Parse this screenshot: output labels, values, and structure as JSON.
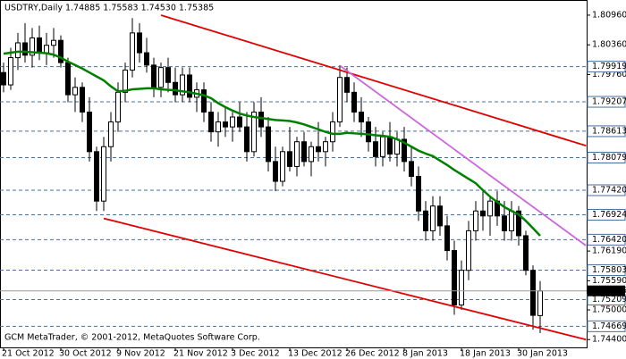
{
  "chart_data": {
    "type": "candlestick",
    "title": "USDTRY,Daily  1.74885 1.75583 1.74530 1.75385",
    "footer": "GCM MetaTrader, © 2001-2012, MetaQuotes Software Corp.",
    "categories": [
      "21 Oct 2012",
      null,
      null,
      null,
      null,
      null,
      null,
      null,
      "30 Oct 2012",
      null,
      null,
      null,
      null,
      null,
      null,
      null,
      "9 Nov 2012",
      null,
      null,
      null,
      null,
      null,
      null,
      null,
      "21 Nov 2012",
      null,
      null,
      null,
      null,
      null,
      null,
      null,
      "3 Dec 2012",
      null,
      null,
      null,
      null,
      null,
      null,
      null,
      "13 Dec 2012",
      null,
      null,
      null,
      null,
      null,
      null,
      null,
      "26 Dec 2012",
      null,
      null,
      null,
      null,
      null,
      null,
      null,
      "8 Jan 2013",
      null,
      null,
      null,
      null,
      null,
      null,
      null,
      "18 Jan 2013",
      null,
      null,
      null,
      null,
      null,
      null,
      null,
      "30 Jan 2013",
      null,
      null,
      null
    ],
    "open": [
      1.798,
      1.7955,
      1.801,
      1.804,
      1.8015,
      1.805,
      1.802,
      1.8035,
      1.8045,
      1.8,
      1.7935,
      1.795,
      1.79,
      1.782,
      1.772,
      1.783,
      1.788,
      1.794,
      1.7985,
      1.806,
      1.802,
      1.7995,
      1.795,
      1.799,
      1.796,
      1.7935,
      1.7975,
      1.793,
      1.7945,
      1.79,
      1.786,
      1.788,
      1.787,
      1.789,
      1.787,
      1.782,
      1.79,
      1.787,
      1.78,
      1.776,
      1.782,
      1.779,
      1.784,
      1.78,
      1.783,
      1.782,
      1.784,
      1.788,
      1.797,
      1.794,
      1.79,
      1.788,
      1.784,
      1.781,
      1.785,
      1.7815,
      1.7845,
      1.78,
      1.777,
      1.77,
      1.766,
      1.771,
      1.767,
      1.762,
      1.751,
      1.758,
      1.766,
      1.77,
      1.769,
      1.772,
      1.769,
      1.766,
      1.77,
      1.765,
      1.758,
      1.74885
    ],
    "high": [
      1.8,
      1.803,
      1.806,
      1.808,
      1.807,
      1.8075,
      1.806,
      1.807,
      1.8055,
      1.801,
      1.797,
      1.796,
      1.793,
      1.783,
      1.785,
      1.79,
      1.796,
      1.8,
      1.809,
      1.808,
      1.805,
      1.801,
      1.8,
      1.801,
      1.799,
      1.799,
      1.799,
      1.796,
      1.796,
      1.792,
      1.79,
      1.791,
      1.79,
      1.792,
      1.79,
      1.792,
      1.793,
      1.789,
      1.783,
      1.783,
      1.787,
      1.785,
      1.786,
      1.784,
      1.788,
      1.785,
      1.79,
      1.7995,
      1.799,
      1.796,
      1.793,
      1.789,
      1.787,
      1.786,
      1.788,
      1.786,
      1.787,
      1.783,
      1.779,
      1.772,
      1.773,
      1.773,
      1.769,
      1.764,
      1.76,
      1.768,
      1.772,
      1.774,
      1.773,
      1.774,
      1.772,
      1.772,
      1.771,
      1.766,
      1.759,
      1.75583
    ],
    "low": [
      1.794,
      1.7945,
      1.7985,
      1.8,
      1.799,
      1.8005,
      1.7995,
      1.801,
      1.799,
      1.792,
      1.79,
      1.788,
      1.78,
      1.77,
      1.77,
      1.78,
      1.786,
      1.792,
      1.797,
      1.8,
      1.798,
      1.793,
      1.793,
      1.794,
      1.792,
      1.792,
      1.792,
      1.79,
      1.788,
      1.784,
      1.783,
      1.785,
      1.784,
      1.786,
      1.78,
      1.781,
      1.785,
      1.778,
      1.774,
      1.775,
      1.778,
      1.777,
      1.779,
      1.777,
      1.78,
      1.779,
      1.782,
      1.787,
      1.792,
      1.788,
      1.785,
      1.782,
      1.779,
      1.779,
      1.78,
      1.779,
      1.778,
      1.775,
      1.768,
      1.764,
      1.764,
      1.765,
      1.76,
      1.749,
      1.75,
      1.756,
      1.764,
      1.766,
      1.765,
      1.767,
      1.764,
      1.764,
      1.763,
      1.757,
      1.746,
      1.7453
    ],
    "close": [
      1.7955,
      1.801,
      1.804,
      1.8015,
      1.805,
      1.802,
      1.8035,
      1.8045,
      1.8,
      1.7935,
      1.795,
      1.79,
      1.782,
      1.772,
      1.783,
      1.788,
      1.794,
      1.7985,
      1.806,
      1.802,
      1.7995,
      1.795,
      1.799,
      1.796,
      1.7935,
      1.7975,
      1.793,
      1.7945,
      1.79,
      1.786,
      1.788,
      1.787,
      1.789,
      1.787,
      1.782,
      1.79,
      1.787,
      1.78,
      1.776,
      1.782,
      1.779,
      1.784,
      1.78,
      1.783,
      1.782,
      1.784,
      1.788,
      1.797,
      1.794,
      1.79,
      1.788,
      1.784,
      1.781,
      1.785,
      1.7815,
      1.7845,
      1.78,
      1.777,
      1.77,
      1.766,
      1.771,
      1.767,
      1.762,
      1.751,
      1.758,
      1.766,
      1.77,
      1.769,
      1.772,
      1.769,
      1.766,
      1.77,
      1.765,
      1.758,
      1.7489,
      1.75385
    ],
    "moving_average": {
      "color": "#008000",
      "values": [
        1.8018,
        1.802,
        1.8022,
        1.8022,
        1.8021,
        1.802,
        1.8019,
        1.8016,
        1.801,
        1.8002,
        1.7995,
        1.7988,
        1.798,
        1.7972,
        1.7964,
        1.7952,
        1.7942,
        1.7943,
        1.7946,
        1.7947,
        1.7948,
        1.7948,
        1.7946,
        1.7945,
        1.7944,
        1.7942,
        1.794,
        1.7937,
        1.7934,
        1.7928,
        1.7918,
        1.791,
        1.7903,
        1.7897,
        1.7893,
        1.789,
        1.7888,
        1.7886,
        1.7884,
        1.7883,
        1.7882,
        1.7879,
        1.7875,
        1.787,
        1.7865,
        1.786,
        1.7856,
        1.7856,
        1.7858,
        1.7857,
        1.7856,
        1.7855,
        1.7853,
        1.7852,
        1.785,
        1.7845,
        1.7838,
        1.783,
        1.7822,
        1.7816,
        1.7811,
        1.7802,
        1.7793,
        1.7783,
        1.7774,
        1.7765,
        1.7756,
        1.7742,
        1.7729,
        1.7718,
        1.7708,
        1.77,
        1.7693,
        1.768,
        1.7665,
        1.765
      ]
    },
    "trendlines": [
      {
        "color": "#e00000",
        "x": [
          22,
          81.4
        ],
        "y": [
          1.8096,
          1.7832
        ]
      },
      {
        "color": "#e00000",
        "x": [
          14,
          81.4
        ],
        "y": [
          1.7685,
          1.744
        ]
      },
      {
        "color": "#cc66dd",
        "x": [
          47,
          81.4
        ],
        "y": [
          1.7994,
          1.763
        ]
      }
    ],
    "levels": [
      1.79919,
      1.79207,
      1.78613,
      1.78079,
      {
        "value": 1.7742,
        "label": "1.77420"
      },
      1.76924,
      {
        "value": 1.7642,
        "label": "1.76420"
      },
      1.75803,
      1.75209,
      1.74669
    ],
    "level_color": "#4a6f9c",
    "xlim": [
      -0.5,
      81.5
    ],
    "ylim": [
      1.7426,
      1.8123
    ],
    "yticks": [
      {
        "value": 1.8096,
        "label": "1.80960"
      },
      {
        "value": 1.8036,
        "label": "1.80360"
      },
      {
        "value": 1.7976,
        "label": "1.79760"
      },
      {
        "value": 1.7619,
        "label": "1.76190"
      },
      {
        "value": 1.7559,
        "label": "1.75590"
      },
      {
        "value": 1.75,
        "label": "1.75000"
      },
      {
        "value": 1.744,
        "label": "1.74400"
      }
    ]
  }
}
